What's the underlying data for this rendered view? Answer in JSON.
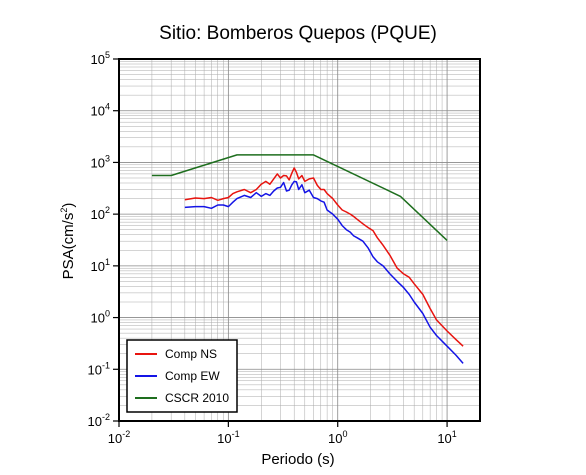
{
  "chart_data": {
    "type": "line",
    "title": "Sitio: Bomberos Quepos (PQUE)",
    "xlabel": "Periodo (s)",
    "ylabel": {
      "base": "PSA(cm/s",
      "sup": "2",
      "tail": ")"
    },
    "xscale": "log",
    "yscale": "log",
    "xlim": [
      0.01,
      20
    ],
    "ylim": [
      0.01,
      100000
    ],
    "grid": true,
    "legend_position": "bottom-left",
    "xticks": [
      {
        "base": "10",
        "exp": "-2",
        "value": 0.01
      },
      {
        "base": "10",
        "exp": "-1",
        "value": 0.1
      },
      {
        "base": "10",
        "exp": "0",
        "value": 1
      },
      {
        "base": "10",
        "exp": "1",
        "value": 10
      }
    ],
    "yticks": [
      {
        "base": "10",
        "exp": "-2",
        "value": 0.01
      },
      {
        "base": "10",
        "exp": "-1",
        "value": 0.1
      },
      {
        "base": "10",
        "exp": "0",
        "value": 1
      },
      {
        "base": "10",
        "exp": "1",
        "value": 10
      },
      {
        "base": "10",
        "exp": "2",
        "value": 100
      },
      {
        "base": "10",
        "exp": "3",
        "value": 1000
      },
      {
        "base": "10",
        "exp": "4",
        "value": 10000
      },
      {
        "base": "10",
        "exp": "5",
        "value": 100000
      }
    ],
    "series": [
      {
        "name": "Comp NS",
        "color": "#e8140f",
        "x": [
          0.04,
          0.05,
          0.06,
          0.07,
          0.08,
          0.09,
          0.1,
          0.11,
          0.12,
          0.14,
          0.16,
          0.18,
          0.2,
          0.22,
          0.24,
          0.26,
          0.28,
          0.3,
          0.32,
          0.34,
          0.36,
          0.38,
          0.4,
          0.42,
          0.44,
          0.47,
          0.5,
          0.55,
          0.6,
          0.65,
          0.7,
          0.75,
          0.8,
          0.9,
          1.0,
          1.1,
          1.2,
          1.3,
          1.4,
          1.5,
          1.7,
          1.9,
          2.1,
          2.3,
          2.6,
          3.0,
          3.5,
          4.0,
          4.5,
          5.0,
          6.0,
          7.0,
          8.0,
          10.0,
          12.0,
          14.0
        ],
        "y": [
          190,
          205,
          200,
          210,
          185,
          200,
          210,
          250,
          270,
          300,
          260,
          300,
          380,
          430,
          380,
          480,
          600,
          500,
          560,
          550,
          460,
          620,
          780,
          640,
          480,
          560,
          430,
          480,
          500,
          360,
          300,
          300,
          250,
          200,
          150,
          120,
          110,
          100,
          90,
          80,
          65,
          55,
          48,
          35,
          25,
          16,
          9,
          7,
          6,
          4.5,
          2.8,
          1.5,
          0.9,
          0.55,
          0.38,
          0.28
        ]
      },
      {
        "name": "Comp EW",
        "color": "#1414e6",
        "x": [
          0.04,
          0.05,
          0.06,
          0.07,
          0.08,
          0.09,
          0.1,
          0.11,
          0.12,
          0.14,
          0.16,
          0.18,
          0.2,
          0.22,
          0.24,
          0.26,
          0.28,
          0.3,
          0.32,
          0.34,
          0.36,
          0.38,
          0.4,
          0.42,
          0.44,
          0.47,
          0.5,
          0.55,
          0.6,
          0.65,
          0.7,
          0.75,
          0.8,
          0.9,
          1.0,
          1.1,
          1.2,
          1.3,
          1.4,
          1.5,
          1.7,
          1.9,
          2.1,
          2.3,
          2.6,
          3.0,
          3.5,
          4.0,
          4.5,
          5.0,
          6.0,
          7.0,
          8.0,
          10.0,
          12.0,
          14.0
        ],
        "y": [
          135,
          140,
          140,
          130,
          150,
          150,
          140,
          170,
          200,
          230,
          210,
          260,
          220,
          250,
          230,
          280,
          320,
          330,
          410,
          280,
          290,
          370,
          430,
          420,
          300,
          370,
          260,
          290,
          210,
          200,
          180,
          170,
          120,
          100,
          80,
          60,
          50,
          45,
          38,
          35,
          30,
          22,
          15,
          12,
          10,
          7,
          5,
          3.8,
          2.8,
          2.0,
          1.2,
          0.65,
          0.45,
          0.28,
          0.19,
          0.13
        ]
      },
      {
        "name": "CSCR 2010",
        "color": "#1e6e1e",
        "x": [
          0.02,
          0.03,
          0.12,
          0.6,
          3.75,
          10.0
        ],
        "y": [
          560,
          560,
          1400,
          1400,
          220,
          31
        ]
      }
    ]
  }
}
